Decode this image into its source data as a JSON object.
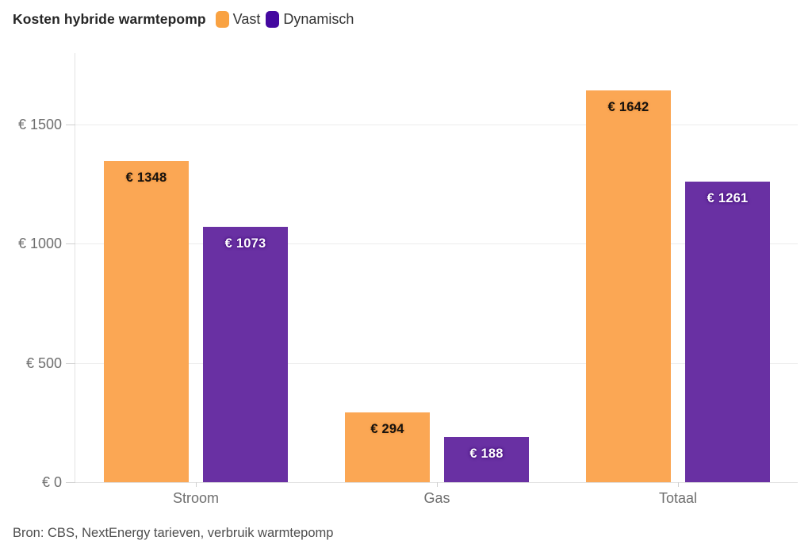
{
  "header": {
    "title": "Kosten hybride warmtepomp",
    "legend": [
      {
        "label": "Vast",
        "color": "#f9a242"
      },
      {
        "label": "Dynamisch",
        "color": "#4408a0"
      }
    ]
  },
  "footer": {
    "source": "Bron: CBS, NextEnergy tarieven, verbruik warmtepomp"
  },
  "chart_data": {
    "type": "bar",
    "title": "Kosten hybride warmtepomp",
    "source": "Bron: CBS, NextEnergy tarieven, verbruik warmtepomp",
    "categories": [
      "Stroom",
      "Gas",
      "Totaal"
    ],
    "series": [
      {
        "name": "Vast",
        "color": "#fba754",
        "values": [
          1348,
          294,
          1642
        ],
        "value_labels": [
          "€ 1348",
          "€ 294",
          "€ 1642"
        ]
      },
      {
        "name": "Dynamisch",
        "color": "#6930a3",
        "values": [
          1073,
          188,
          1261
        ],
        "value_labels": [
          "€ 1073",
          "€ 188",
          "€ 1261"
        ]
      }
    ],
    "yticks": [
      0,
      500,
      1000,
      1500
    ],
    "ytick_labels": [
      "€ 0",
      "€ 500",
      "€ 1000",
      "€ 1500"
    ],
    "ylim": [
      0,
      1800
    ],
    "grid": true,
    "legend_position": "top",
    "xlabel": "",
    "ylabel": ""
  }
}
